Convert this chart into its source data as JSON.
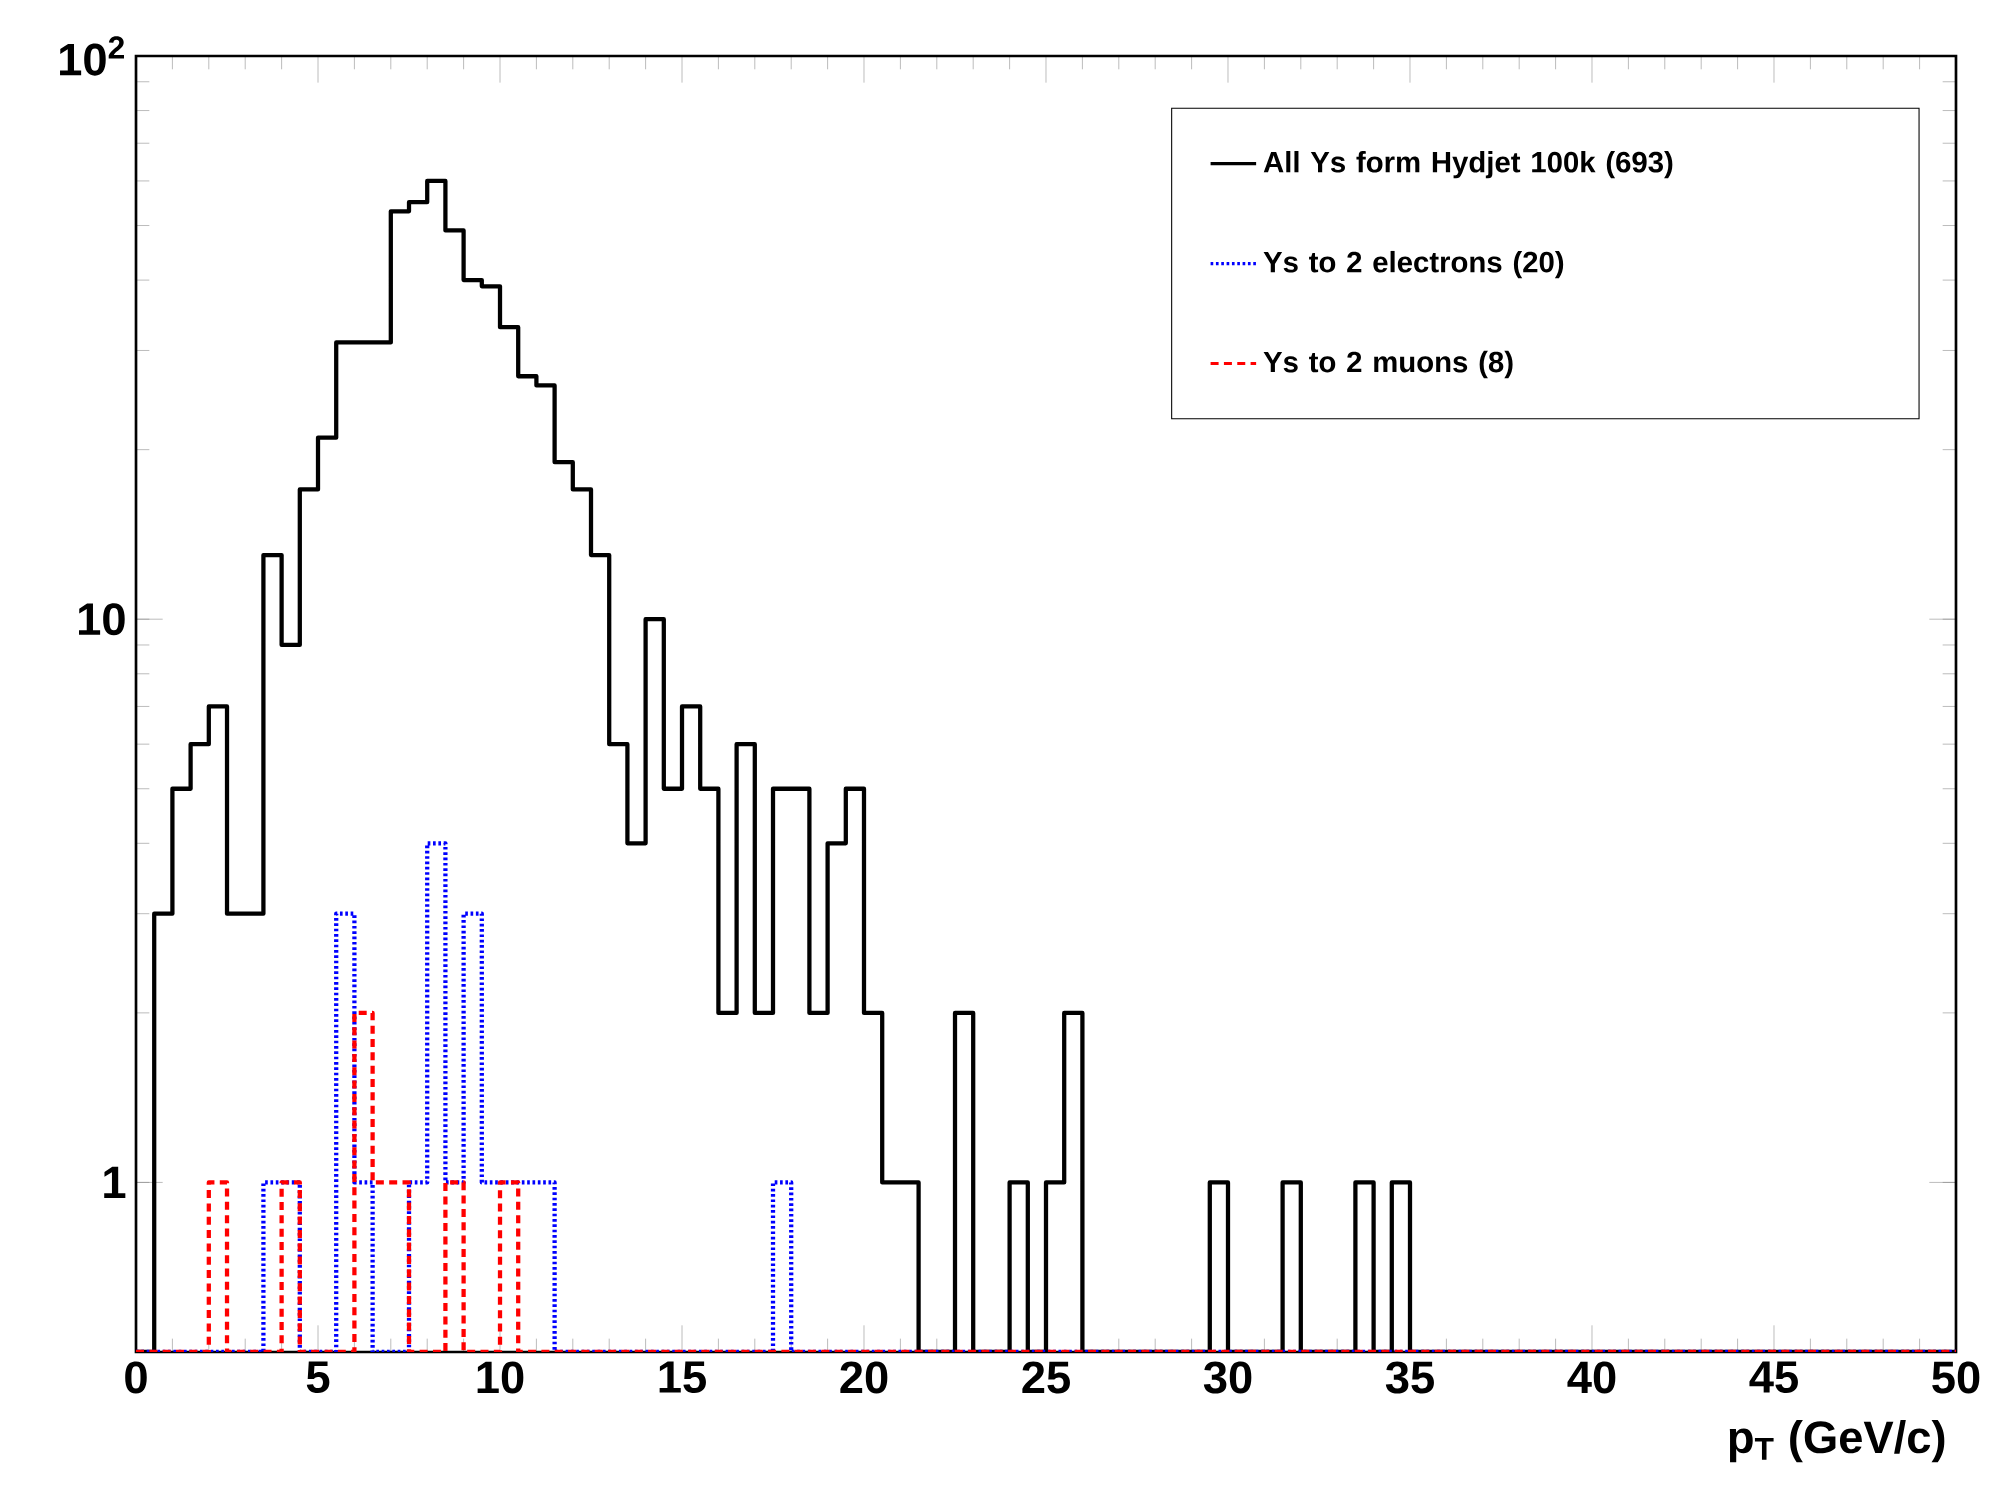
{
  "chart_data": {
    "type": "histogram",
    "xlabel": "p$_{T}$ (GeV/c)",
    "bins": [
      0,
      0.5,
      1,
      1.5,
      2,
      2.5,
      3,
      3.5,
      4,
      4.5,
      5,
      5.5,
      6,
      6.5,
      7,
      7.5,
      8,
      8.5,
      9,
      9.5,
      10,
      10.5,
      11,
      11.5,
      12,
      12.5,
      13,
      13.5,
      14,
      14.5,
      15,
      15.5,
      16,
      16.5,
      17,
      17.5,
      18,
      18.5,
      19,
      19.5,
      20,
      20.5,
      21,
      21.5,
      22,
      22.5,
      23,
      23.5,
      24,
      24.5,
      25,
      25.5,
      26,
      26.5,
      27,
      27.5,
      28,
      28.5,
      29,
      29.5,
      30,
      30.5,
      31,
      31.5,
      32,
      32.5,
      33,
      33.5,
      34,
      34.5,
      35,
      35.5,
      36,
      36.5,
      37,
      37.5,
      38,
      38.5,
      39,
      39.5,
      40,
      40.5,
      41,
      41.5,
      42,
      42.5,
      43,
      43.5,
      44,
      44.5,
      45,
      45.5,
      46,
      46.5,
      47,
      47.5,
      48,
      48.5,
      49,
      49.5,
      50
    ],
    "series": [
      {
        "name": "All Υs form Hydjet 100k (693)",
        "color": "#000000",
        "line_style": "solid",
        "values": [
          null,
          3,
          5,
          6,
          7,
          3,
          3,
          13,
          9,
          17,
          21,
          31,
          31,
          31,
          53,
          55,
          60,
          49,
          40,
          39,
          33,
          27,
          26,
          19,
          17,
          13,
          6,
          4,
          10,
          5,
          7,
          5,
          2,
          6,
          2,
          5,
          5,
          2,
          4,
          5,
          2,
          1,
          1,
          null,
          null,
          2,
          null,
          null,
          1,
          null,
          1,
          2,
          null,
          null,
          null,
          null,
          null,
          null,
          null,
          1,
          null,
          null,
          null,
          1,
          null,
          null,
          null,
          1,
          null,
          1,
          null,
          null,
          null,
          null,
          null,
          null,
          null,
          null,
          null,
          null,
          null,
          null,
          null,
          null,
          null,
          null,
          null,
          null,
          null,
          null,
          null,
          null,
          null,
          null,
          null,
          null,
          null,
          null,
          null,
          null
        ]
      },
      {
        "name": "Υs to 2 electrons (20)",
        "color": "#0000ff",
        "line_style": "dotted",
        "values": [
          null,
          null,
          null,
          null,
          null,
          null,
          null,
          1,
          1,
          null,
          null,
          3,
          1,
          null,
          null,
          1,
          4,
          1,
          3,
          1,
          1,
          1,
          1,
          null,
          null,
          null,
          null,
          null,
          null,
          null,
          null,
          null,
          null,
          null,
          null,
          1,
          null,
          null,
          null,
          null,
          null,
          null,
          null,
          null,
          null,
          null,
          null,
          null,
          null,
          null,
          null,
          null,
          null,
          null,
          null,
          null,
          null,
          null,
          null,
          null,
          null,
          null,
          null,
          null,
          null,
          null,
          null,
          null,
          null,
          null,
          null,
          null,
          null,
          null,
          null,
          null,
          null,
          null,
          null,
          null,
          null,
          null,
          null,
          null,
          null,
          null,
          null,
          null,
          null,
          null,
          null,
          null,
          null,
          null,
          null,
          null,
          null,
          null,
          null,
          null
        ]
      },
      {
        "name": "Υs to 2 muons (8)",
        "color": "#ff0000",
        "line_style": "dashed",
        "values": [
          null,
          null,
          null,
          null,
          1,
          null,
          null,
          null,
          1,
          null,
          null,
          null,
          2,
          1,
          1,
          null,
          null,
          1,
          null,
          null,
          1,
          null,
          null,
          null,
          null,
          null,
          null,
          null,
          null,
          null,
          null,
          null,
          null,
          null,
          null,
          null,
          null,
          null,
          null,
          null,
          null,
          null,
          null,
          null,
          null,
          null,
          null,
          null,
          null,
          null,
          null,
          null,
          null,
          null,
          null,
          null,
          null,
          null,
          null,
          null,
          null,
          null,
          null,
          null,
          null,
          null,
          null,
          null,
          null,
          null,
          null,
          null,
          null,
          null,
          null,
          null,
          null,
          null,
          null,
          null,
          null,
          null,
          null,
          null,
          null,
          null,
          null,
          null,
          null,
          null,
          null,
          null,
          null,
          null,
          null,
          null,
          null,
          null,
          null,
          null
        ]
      }
    ],
    "xlim": [
      0,
      50
    ],
    "xticks": [
      0,
      5,
      10,
      15,
      20,
      25,
      30,
      35,
      40,
      45,
      50
    ],
    "ylim": [
      0.5,
      100
    ],
    "yticks": [
      1,
      10,
      {
        "value": 100,
        "label": "10$^{2}$"
      }
    ],
    "log": "y",
    "grid": false,
    "legend": "top right",
    "marker": "none"
  }
}
